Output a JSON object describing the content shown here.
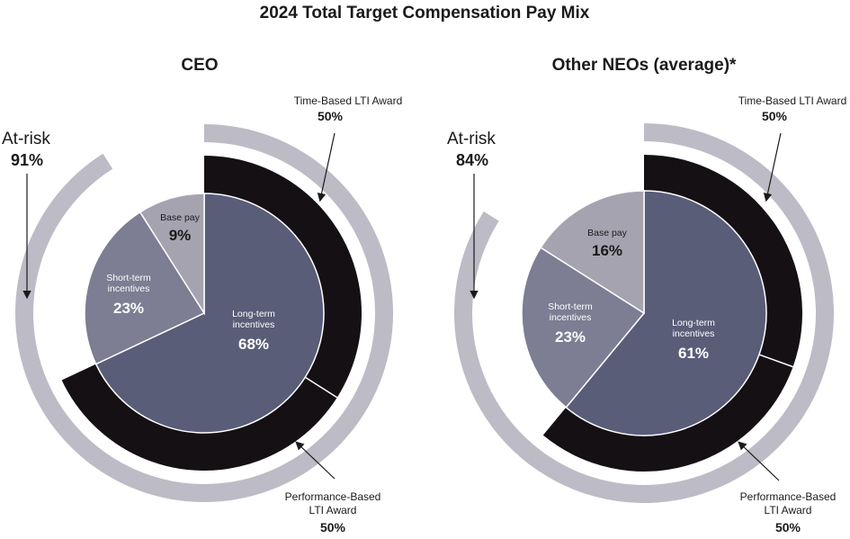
{
  "colors": {
    "base_pay": "#a6a3b1",
    "short_term": "#7d7d93",
    "long_term": "#595d78",
    "lti_ring": "#141014",
    "at_risk_ring": "#bcbbc6",
    "arrow": "#1a1a1a"
  },
  "chart_data": {
    "type": "pie",
    "title": "2024 Total Target Compensation Pay Mix",
    "charts": [
      {
        "subtitle": "CEO",
        "slices": [
          {
            "label_line1": "Base pay",
            "label_line2": "",
            "value": 9,
            "display": "9%"
          },
          {
            "label_line1": "Short-term",
            "label_line2": "incentives",
            "value": 23,
            "display": "23%"
          },
          {
            "label_line1": "Long-term",
            "label_line2": "incentives",
            "value": 68,
            "display": "68%"
          }
        ],
        "lti_ring": [
          {
            "label": "Time-Based LTI Award",
            "value": 50,
            "display": "50%"
          },
          {
            "label_line1": "Performance-Based",
            "label_line2": "LTI Award",
            "value": 50,
            "display": "50%"
          }
        ],
        "at_risk": {
          "label": "At-risk",
          "value": 91,
          "display": "91%"
        }
      },
      {
        "subtitle": "Other NEOs (average)*",
        "slices": [
          {
            "label_line1": "Base pay",
            "label_line2": "",
            "value": 16,
            "display": "16%"
          },
          {
            "label_line1": "Short-term",
            "label_line2": "incentives",
            "value": 23,
            "display": "23%"
          },
          {
            "label_line1": "Long-term",
            "label_line2": "incentives",
            "value": 61,
            "display": "61%"
          }
        ],
        "lti_ring": [
          {
            "label": "Time-Based LTI Award",
            "value": 50,
            "display": "50%"
          },
          {
            "label_line1": "Performance-Based",
            "label_line2": "LTI Award",
            "value": 50,
            "display": "50%"
          }
        ],
        "at_risk": {
          "label": "At-risk",
          "value": 84,
          "display": "84%"
        }
      }
    ]
  }
}
